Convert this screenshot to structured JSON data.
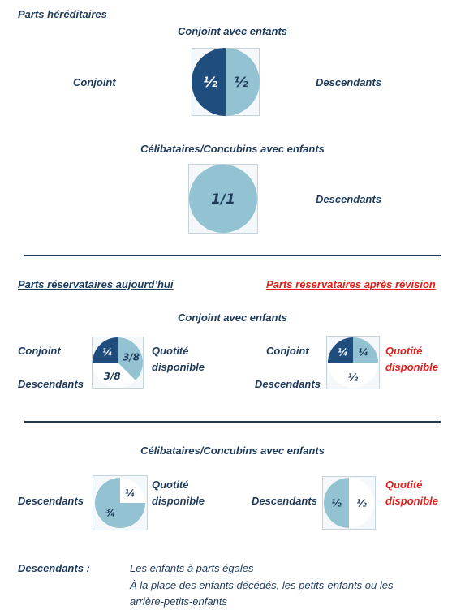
{
  "colors": {
    "dark": "#1f4e7e",
    "light": "#93c2d2",
    "white": "#ffffff",
    "text": "#1f3b5c",
    "accent_red": "#e0201b",
    "frame": "#c3d4dc"
  },
  "hereditary": {
    "heading": "Parts héréditaires",
    "spouse_children": {
      "title": "Conjoint avec enfants",
      "left_label": "Conjoint",
      "right_label": "Descendants",
      "slices": [
        {
          "label": "½",
          "value": 0.5,
          "color": "dark"
        },
        {
          "label": "½",
          "value": 0.5,
          "color": "light"
        }
      ]
    },
    "single_children": {
      "title": "Célibataires/Concubins  avec enfants",
      "right_label": "Descendants",
      "slices": [
        {
          "label": "1/1",
          "value": 1.0,
          "color": "light"
        }
      ]
    }
  },
  "reserved": {
    "heading_now": "Parts réservataires aujourd’hui",
    "heading_after": "Parts réservataires après révision",
    "spouse_children": {
      "title": "Conjoint avec enfants",
      "now": {
        "label_spouse": "Conjoint",
        "label_desc": "Descendants",
        "quota_line1": "Quotité",
        "quota_line2": "disponible",
        "slices": [
          {
            "label": "¼",
            "value": 0.25,
            "color": "dark"
          },
          {
            "label": "3/8",
            "value": 0.375,
            "color": "light"
          },
          {
            "label": "3/8",
            "value": 0.375,
            "color": "white"
          }
        ]
      },
      "after": {
        "label_spouse": "Conjoint",
        "label_desc": "Descendants",
        "quota_line1": "Quotité",
        "quota_line2": "disponible",
        "slices": [
          {
            "label": "¼",
            "value": 0.25,
            "color": "dark"
          },
          {
            "label": "¼",
            "value": 0.25,
            "color": "light"
          },
          {
            "label": "½",
            "value": 0.5,
            "color": "white"
          }
        ]
      }
    },
    "single_children": {
      "title": "Célibataires/Concubins  avec enfants",
      "now": {
        "label_desc": "Descendants",
        "quota_line1": "Quotité",
        "quota_line2": "disponible",
        "slices": [
          {
            "label": "¾",
            "value": 0.75,
            "color": "light"
          },
          {
            "label": "¼",
            "value": 0.25,
            "color": "white"
          }
        ]
      },
      "after": {
        "label_desc": "Descendants",
        "quota_line1": "Quotité",
        "quota_line2": "disponible",
        "slices": [
          {
            "label": "½",
            "value": 0.5,
            "color": "light"
          },
          {
            "label": "½",
            "value": 0.5,
            "color": "white"
          }
        ]
      }
    }
  },
  "footnote": {
    "term": "Descendants :",
    "line1": "Les enfants à parts égales",
    "line2": "À la place des enfants décédés, les petits-enfants ou les",
    "line3": "arrière-petits-enfants"
  }
}
